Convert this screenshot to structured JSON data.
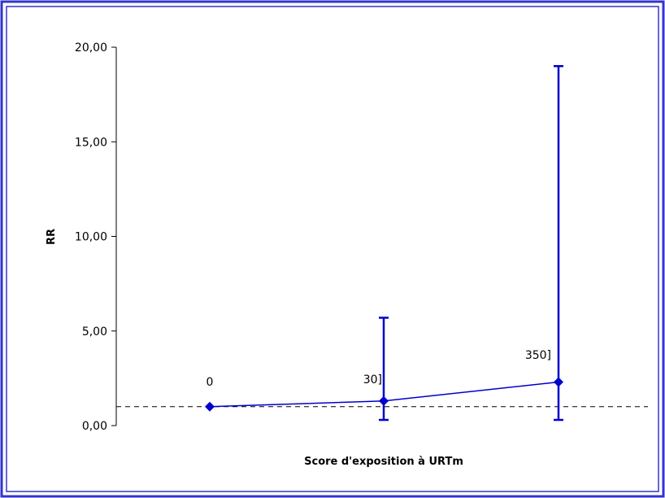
{
  "chart_data": {
    "type": "line",
    "title": "",
    "xlabel": "Score d'exposition à URTm",
    "ylabel": "RR",
    "ylim": [
      0,
      20
    ],
    "yticks": [
      "0,00",
      "5,00",
      "10,00",
      "15,00",
      "20,00"
    ],
    "reference_line": 1.0,
    "grid": false,
    "points": [
      {
        "label": "0",
        "rr": 1.0,
        "lower": 1.0,
        "upper": 1.0
      },
      {
        "label": "30]",
        "rr": 1.3,
        "lower": 0.3,
        "upper": 5.7
      },
      {
        "label": "350]",
        "rr": 2.3,
        "lower": 0.3,
        "upper": 19.0
      }
    ],
    "colors": {
      "series": "#0000cc",
      "frame": "#3333cc",
      "reference": "#000000"
    }
  }
}
